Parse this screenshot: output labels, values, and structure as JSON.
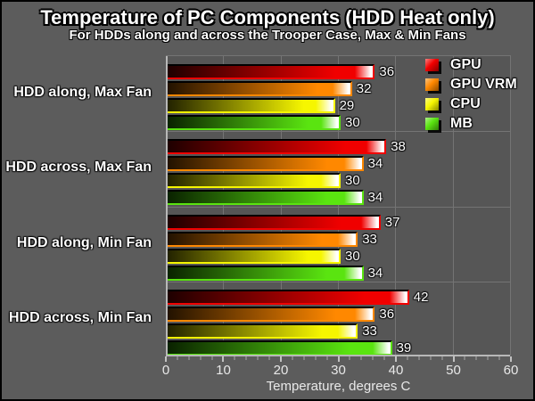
{
  "colors": {
    "background": "#5c5c5c",
    "plot_background": "#565656",
    "gridline": "#747474",
    "axis_line": "#b8b8b8",
    "tick_text": "#e8e8e8",
    "label_text": "#ffffff",
    "frame": "#000000"
  },
  "chart_data": {
    "type": "bar",
    "orientation": "horizontal",
    "title": "Temperature of PC Components (HDD Heat only)",
    "subtitle": "For HDDs along and across the Trooper Case, Max & Min Fans",
    "xlabel": "Temperature, degrees C",
    "xlim": [
      0,
      60
    ],
    "xticks": [
      0,
      10,
      20,
      30,
      40,
      50,
      60
    ],
    "minor_tick_step": 2,
    "grid": {
      "vertical_major": true,
      "group_separators": true
    },
    "legend_position": "top-right",
    "value_labels": true,
    "categories": [
      "HDD along, Max Fan",
      "HDD across, Max Fan",
      "HDD along, Min Fan",
      "HDD across, Min Fan"
    ],
    "series": [
      {
        "name": "GPU",
        "color": "#f00000",
        "gradient_dark": "#1e0000",
        "values": [
          36,
          38,
          37,
          42
        ]
      },
      {
        "name": "GPU VRM",
        "color": "#ff8800",
        "gradient_dark": "#221200",
        "values": [
          32,
          34,
          33,
          36
        ]
      },
      {
        "name": "CPU",
        "color": "#f6f600",
        "gradient_dark": "#222200",
        "values": [
          29,
          30,
          30,
          33
        ]
      },
      {
        "name": "MB",
        "color": "#5ae410",
        "gradient_dark": "#0a2200",
        "values": [
          30,
          34,
          34,
          39
        ]
      }
    ]
  }
}
